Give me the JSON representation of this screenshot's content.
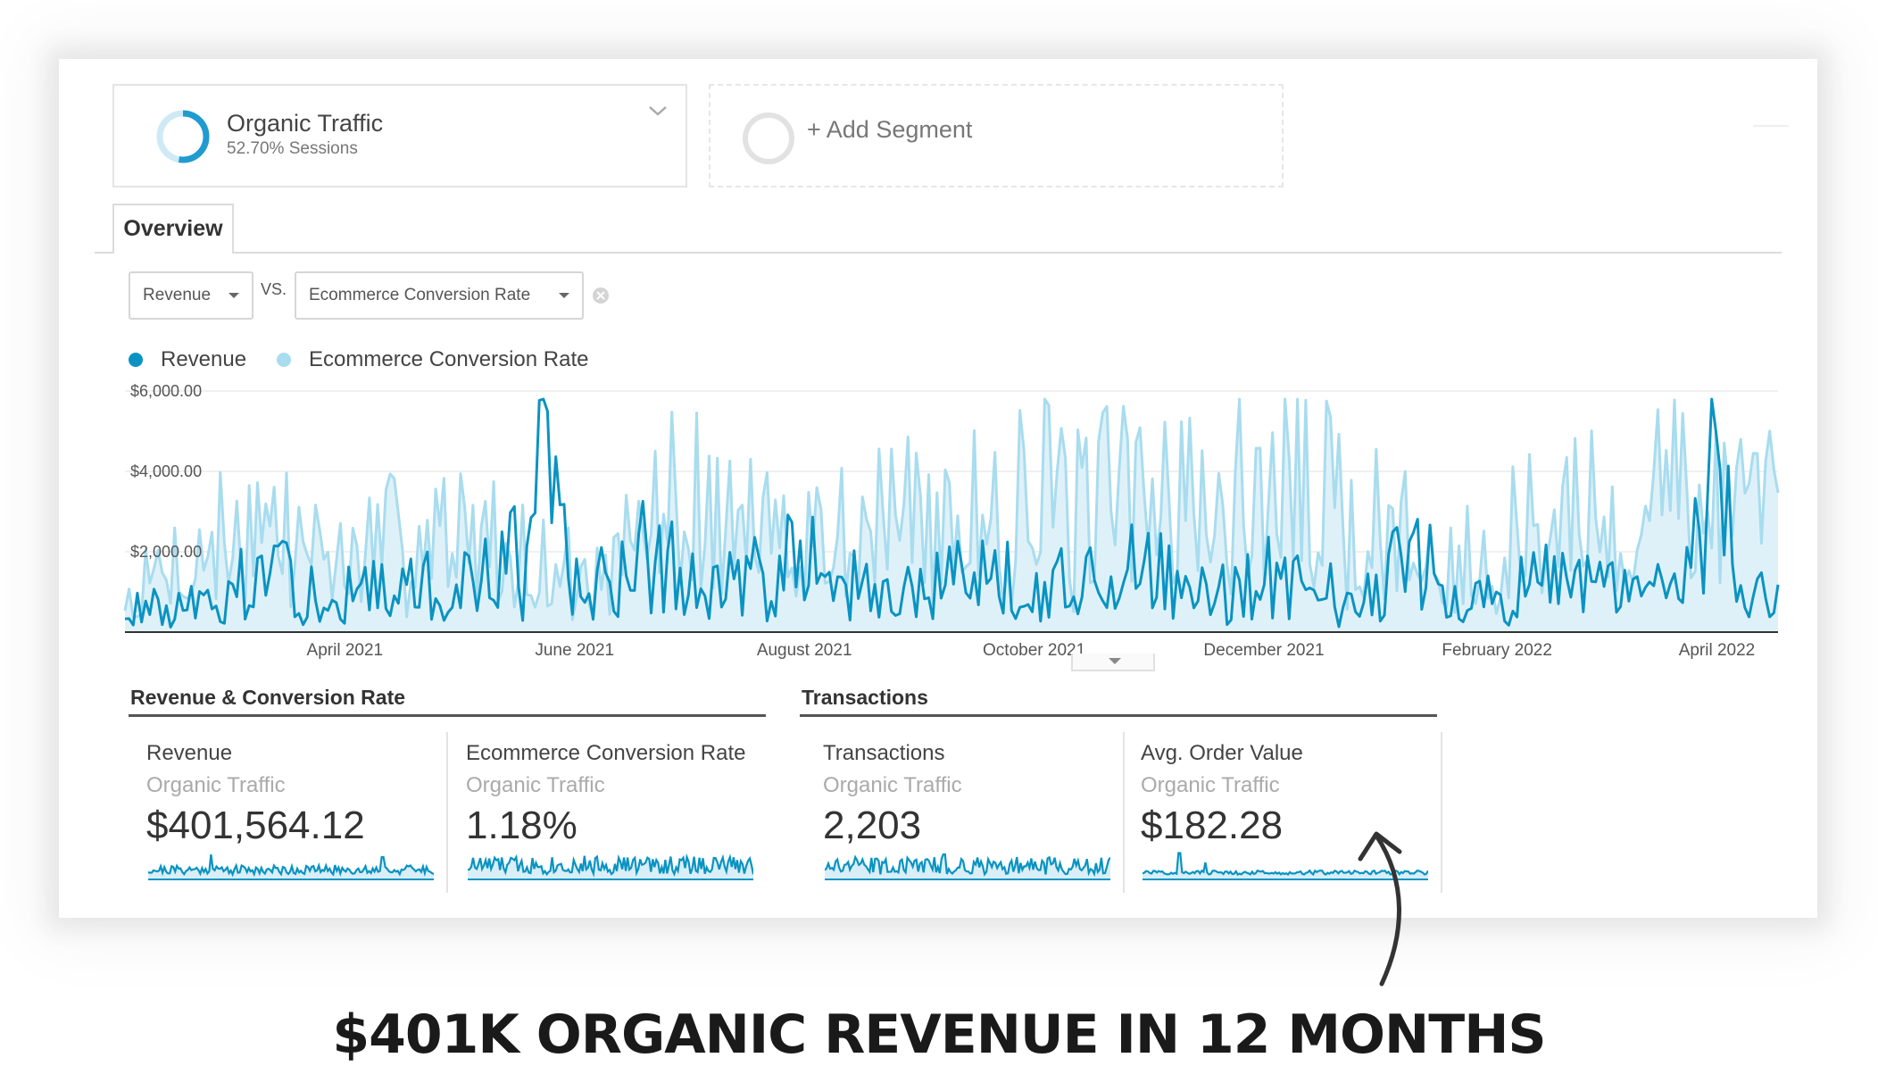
{
  "segments": {
    "organic": {
      "title": "Organic Traffic",
      "subtitle": "52.70% Sessions",
      "share": 0.527,
      "ring_color": "#1f9bd0"
    },
    "add": {
      "label": "+ Add Segment"
    }
  },
  "tabs": [
    {
      "label": "Overview"
    }
  ],
  "metric_selectors": {
    "primary": "Revenue",
    "vs": "VS.",
    "secondary": "Ecommerce Conversion Rate"
  },
  "colors": {
    "revenue": "#0a93c2",
    "ecr": "#a8dcef",
    "accent": "#1f9bd0"
  },
  "chart_data": {
    "type": "line",
    "series": [
      {
        "name": "Revenue",
        "color": "#0a93c2"
      },
      {
        "name": "Ecommerce Conversion Rate",
        "color": "#a8dcef"
      }
    ],
    "y_ticks": [
      "$6,000.00",
      "$4,000.00",
      "$2,000.00"
    ],
    "ylim": [
      0,
      6000
    ],
    "x_ticks": [
      "April 2021",
      "June 2021",
      "August 2021",
      "October 2021",
      "December 2021",
      "February 2022",
      "April 2022"
    ],
    "revenue_anchor_points": [
      [
        0.0,
        650
      ],
      [
        0.05,
        900
      ],
      [
        0.08,
        1700
      ],
      [
        0.13,
        1150
      ],
      [
        0.18,
        1350
      ],
      [
        0.21,
        1500
      ],
      [
        0.245,
        2850
      ],
      [
        0.255,
        5500
      ],
      [
        0.27,
        1200
      ],
      [
        0.31,
        2300
      ],
      [
        0.36,
        1350
      ],
      [
        0.41,
        2200
      ],
      [
        0.46,
        900
      ],
      [
        0.52,
        1900
      ],
      [
        0.56,
        1300
      ],
      [
        0.61,
        2150
      ],
      [
        0.65,
        1100
      ],
      [
        0.7,
        1800
      ],
      [
        0.74,
        1400
      ],
      [
        0.78,
        2100
      ],
      [
        0.82,
        1000
      ],
      [
        0.86,
        1500
      ],
      [
        0.9,
        1300
      ],
      [
        0.94,
        1200
      ],
      [
        0.962,
        5000
      ],
      [
        0.975,
        1700
      ],
      [
        1.0,
        800
      ]
    ],
    "ecr_anchor_points": [
      [
        0.0,
        1000
      ],
      [
        0.07,
        3500
      ],
      [
        0.13,
        2100
      ],
      [
        0.19,
        3400
      ],
      [
        0.25,
        2100
      ],
      [
        0.29,
        1500
      ],
      [
        0.33,
        4200
      ],
      [
        0.37,
        3300
      ],
      [
        0.41,
        2900
      ],
      [
        0.46,
        3600
      ],
      [
        0.5,
        2900
      ],
      [
        0.54,
        4900
      ],
      [
        0.58,
        3600
      ],
      [
        0.62,
        4800
      ],
      [
        0.66,
        4000
      ],
      [
        0.7,
        4800
      ],
      [
        0.74,
        3600
      ],
      [
        0.78,
        2700
      ],
      [
        0.82,
        2400
      ],
      [
        0.86,
        3300
      ],
      [
        0.9,
        3600
      ],
      [
        0.94,
        4300
      ],
      [
        0.96,
        4800
      ],
      [
        0.98,
        3200
      ],
      [
        1.0,
        3900
      ]
    ]
  },
  "collapse_icon": "chevron-down-icon",
  "sections": [
    {
      "title": "Revenue & Conversion Rate"
    },
    {
      "title": "Transactions"
    }
  ],
  "scorecards": [
    {
      "metric": "Revenue",
      "segment": "Organic Traffic",
      "value": "$401,564.12"
    },
    {
      "metric": "Ecommerce Conversion Rate",
      "segment": "Organic Traffic",
      "value": "1.18%"
    },
    {
      "metric": "Transactions",
      "segment": "Organic Traffic",
      "value": "2,203"
    },
    {
      "metric": "Avg. Order Value",
      "segment": "Organic Traffic",
      "value": "$182.28"
    }
  ],
  "annotation": {
    "headline": "$401K ORGANIC REVENUE IN 12 MONTHS",
    "arrow_icon": "curved-arrow-up-icon"
  }
}
